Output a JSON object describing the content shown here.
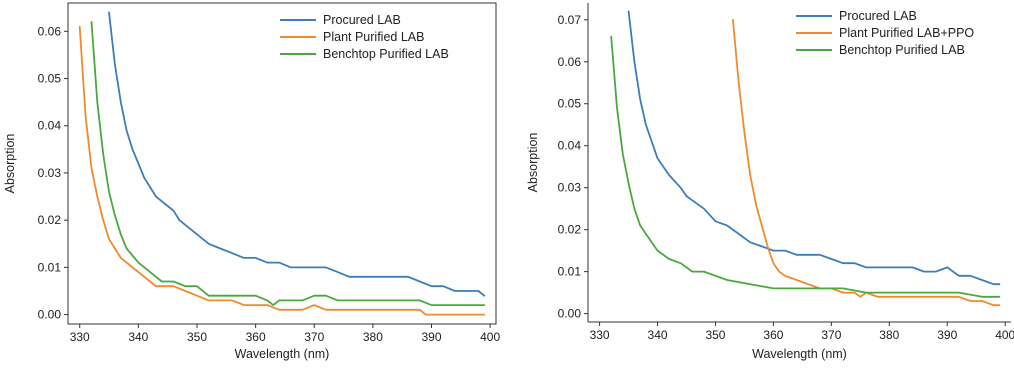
{
  "chart_data": [
    {
      "type": "line",
      "xlabel": "Wavelength (nm)",
      "ylabel": "Absorption",
      "xlim": [
        328,
        401
      ],
      "ylim": [
        -0.002,
        0.066
      ],
      "xticks": [
        330,
        340,
        350,
        360,
        370,
        380,
        390,
        400
      ],
      "yticks": [
        0.0,
        0.01,
        0.02,
        0.03,
        0.04,
        0.05,
        0.06
      ],
      "legend_position": "top-right",
      "series": [
        {
          "name": "Procured LAB",
          "color": "#3b7dbd",
          "x": [
            335,
            336,
            337,
            338,
            339,
            340,
            341,
            342,
            343,
            344,
            345,
            346,
            347,
            348,
            350,
            352,
            354,
            356,
            358,
            360,
            362,
            364,
            366,
            368,
            370,
            372,
            374,
            376,
            378,
            380,
            382,
            384,
            386,
            388,
            390,
            392,
            394,
            396,
            398,
            399
          ],
          "y": [
            0.064,
            0.053,
            0.045,
            0.039,
            0.035,
            0.032,
            0.029,
            0.027,
            0.025,
            0.024,
            0.023,
            0.022,
            0.02,
            0.019,
            0.017,
            0.015,
            0.014,
            0.013,
            0.012,
            0.012,
            0.011,
            0.011,
            0.01,
            0.01,
            0.01,
            0.01,
            0.009,
            0.008,
            0.008,
            0.008,
            0.008,
            0.008,
            0.008,
            0.007,
            0.006,
            0.006,
            0.005,
            0.005,
            0.005,
            0.004
          ]
        },
        {
          "name": "Plant Purified LAB",
          "color": "#f08a2c",
          "x": [
            330,
            331,
            332,
            333,
            334,
            335,
            336,
            337,
            338,
            340,
            342,
            343,
            344,
            346,
            348,
            350,
            352,
            356,
            358,
            362,
            364,
            366,
            368,
            370,
            372,
            376,
            380,
            384,
            388,
            389,
            390,
            395,
            399
          ],
          "y": [
            0.061,
            0.042,
            0.031,
            0.025,
            0.02,
            0.016,
            0.014,
            0.012,
            0.011,
            0.009,
            0.007,
            0.006,
            0.006,
            0.006,
            0.005,
            0.004,
            0.003,
            0.003,
            0.002,
            0.002,
            0.001,
            0.001,
            0.001,
            0.002,
            0.001,
            0.001,
            0.001,
            0.001,
            0.001,
            0.0,
            0.0,
            0.0,
            0.0
          ]
        },
        {
          "name": "Benchtop Purified LAB",
          "color": "#4aa83f",
          "x": [
            332,
            333,
            334,
            335,
            336,
            337,
            338,
            340,
            342,
            344,
            346,
            348,
            350,
            352,
            356,
            360,
            362,
            363,
            364,
            366,
            368,
            370,
            372,
            374,
            376,
            380,
            384,
            388,
            390,
            395,
            399
          ],
          "y": [
            0.062,
            0.045,
            0.034,
            0.026,
            0.021,
            0.017,
            0.014,
            0.011,
            0.009,
            0.007,
            0.007,
            0.006,
            0.006,
            0.004,
            0.004,
            0.004,
            0.003,
            0.002,
            0.003,
            0.003,
            0.003,
            0.004,
            0.004,
            0.003,
            0.003,
            0.003,
            0.003,
            0.003,
            0.002,
            0.002,
            0.002
          ]
        }
      ]
    },
    {
      "type": "line",
      "xlabel": "Wavelength (nm)",
      "ylabel": "Absorption",
      "xlim": [
        328,
        401
      ],
      "ylim": [
        -0.002,
        0.074
      ],
      "xticks": [
        330,
        340,
        350,
        360,
        370,
        380,
        390,
        400
      ],
      "yticks": [
        0.0,
        0.01,
        0.02,
        0.03,
        0.04,
        0.05,
        0.06,
        0.07
      ],
      "legend_position": "top-right",
      "series": [
        {
          "name": "Procured LAB",
          "color": "#3b7dbd",
          "x": [
            335,
            336,
            337,
            338,
            339,
            340,
            342,
            344,
            345,
            346,
            348,
            350,
            352,
            354,
            356,
            358,
            360,
            362,
            364,
            366,
            368,
            370,
            372,
            374,
            376,
            378,
            380,
            382,
            384,
            386,
            388,
            390,
            392,
            394,
            396,
            398,
            399
          ],
          "y": [
            0.072,
            0.06,
            0.051,
            0.045,
            0.041,
            0.037,
            0.033,
            0.03,
            0.028,
            0.027,
            0.025,
            0.022,
            0.021,
            0.019,
            0.017,
            0.016,
            0.015,
            0.015,
            0.014,
            0.014,
            0.014,
            0.013,
            0.012,
            0.012,
            0.011,
            0.011,
            0.011,
            0.011,
            0.011,
            0.01,
            0.01,
            0.011,
            0.009,
            0.009,
            0.008,
            0.007,
            0.007
          ]
        },
        {
          "name": "Plant Purified LAB+PPO",
          "color": "#f08a2c",
          "x": [
            353,
            354,
            355,
            356,
            357,
            358,
            359,
            360,
            361,
            362,
            364,
            366,
            368,
            370,
            372,
            374,
            375,
            376,
            378,
            380,
            384,
            388,
            392,
            394,
            396,
            398,
            399
          ],
          "y": [
            0.07,
            0.055,
            0.043,
            0.033,
            0.026,
            0.021,
            0.016,
            0.012,
            0.01,
            0.009,
            0.008,
            0.007,
            0.006,
            0.006,
            0.005,
            0.005,
            0.004,
            0.005,
            0.004,
            0.004,
            0.004,
            0.004,
            0.004,
            0.003,
            0.003,
            0.002,
            0.002
          ]
        },
        {
          "name": "Benchtop Purified LAB",
          "color": "#4aa83f",
          "x": [
            332,
            333,
            334,
            335,
            336,
            337,
            338,
            340,
            342,
            344,
            346,
            348,
            350,
            352,
            356,
            360,
            364,
            368,
            372,
            376,
            380,
            384,
            388,
            392,
            396,
            399
          ],
          "y": [
            0.066,
            0.049,
            0.038,
            0.031,
            0.025,
            0.021,
            0.019,
            0.015,
            0.013,
            0.012,
            0.01,
            0.01,
            0.009,
            0.008,
            0.007,
            0.006,
            0.006,
            0.006,
            0.006,
            0.005,
            0.005,
            0.005,
            0.005,
            0.005,
            0.004,
            0.004
          ]
        }
      ]
    }
  ]
}
